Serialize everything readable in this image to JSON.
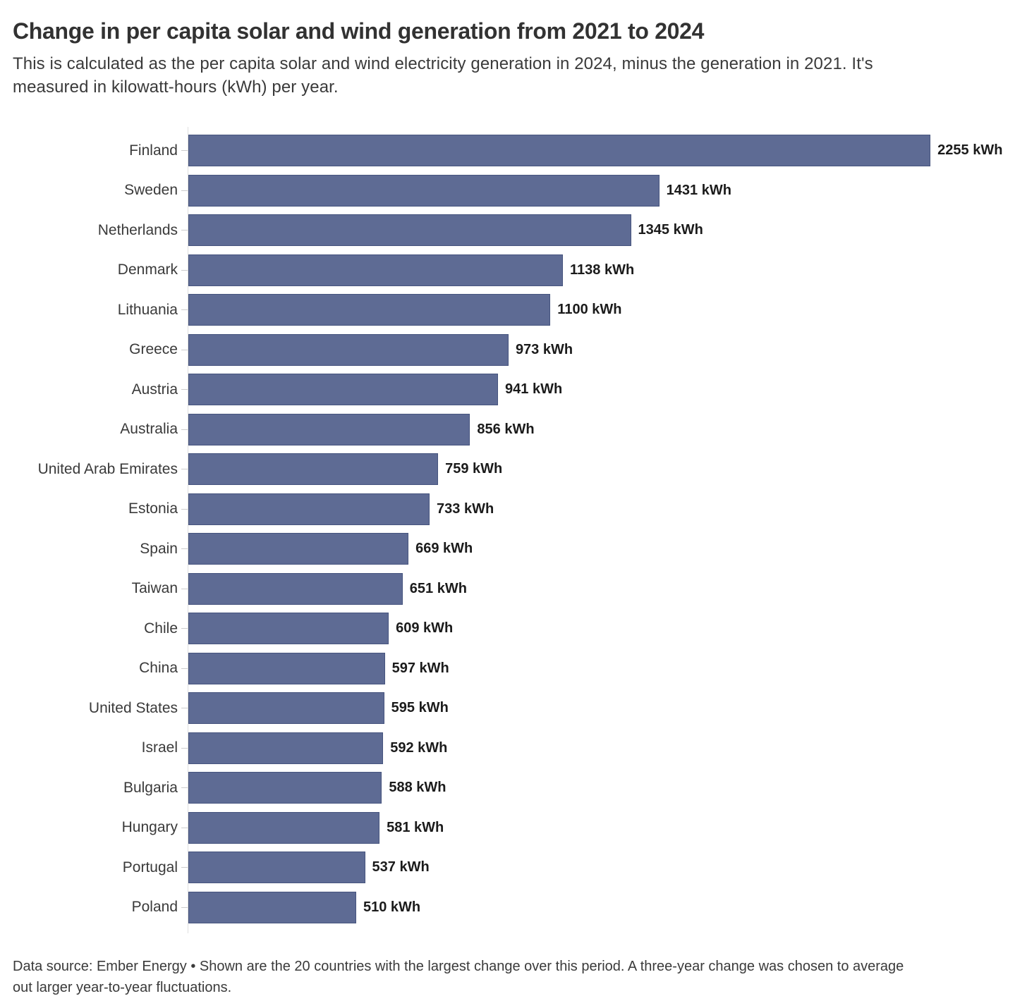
{
  "header": {
    "title": "Change in per capita solar and wind generation from 2021 to 2024",
    "subtitle": "This is calculated as the per capita solar and wind electricity generation in 2024, minus the generation in 2021. It's measured in kilowatt-hours (kWh) per year."
  },
  "footer": {
    "note": "Data source: Ember Energy • Shown are the 20 countries with the largest change over this period. A three-year change was chosen to average out larger year-to-year fluctuations."
  },
  "colors": {
    "bar_fill": "#5e6b94",
    "bar_border": "#46547e",
    "axis_line": "#dfdfdf",
    "tick": "#cccccc",
    "title_text": "#323232",
    "body_text": "#3a3a3a",
    "value_text": "#1b1b1b"
  },
  "chart_data": {
    "type": "bar",
    "orientation": "horizontal",
    "title": "Change in per capita solar and wind generation from 2021 to 2024",
    "xlabel": "",
    "ylabel": "",
    "xlim": [
      0,
      2255
    ],
    "grid": false,
    "legend": "none",
    "value_label_position": "outside-end",
    "value_suffix": " kWh",
    "categories": [
      "Finland",
      "Sweden",
      "Netherlands",
      "Denmark",
      "Lithuania",
      "Greece",
      "Austria",
      "Australia",
      "United Arab Emirates",
      "Estonia",
      "Spain",
      "Taiwan",
      "Chile",
      "China",
      "United States",
      "Israel",
      "Bulgaria",
      "Hungary",
      "Portugal",
      "Poland"
    ],
    "values": [
      2255,
      1431,
      1345,
      1138,
      1100,
      973,
      941,
      856,
      759,
      733,
      669,
      651,
      609,
      597,
      595,
      592,
      588,
      581,
      537,
      510
    ]
  }
}
